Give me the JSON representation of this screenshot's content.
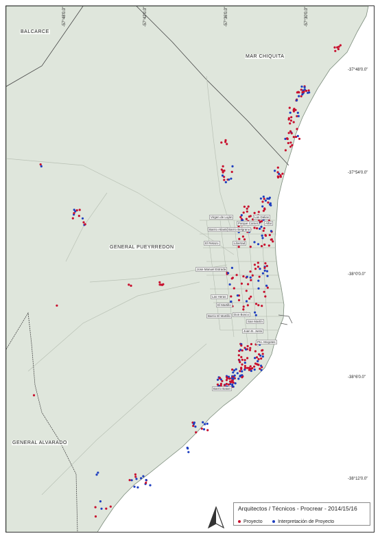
{
  "map": {
    "regions": [
      {
        "name": "BALCARCE"
      },
      {
        "name": "MAR CHIQUITA"
      },
      {
        "name": "GENERAL PUEYRREDON"
      },
      {
        "name": "GENERAL ALVARADO"
      }
    ],
    "latitudes": [
      "-37°48'0.0\"",
      "-37°54'0.0\"",
      "-38°0'0.0\"",
      "-38°6'0.0\"",
      "-38°12'0.0\""
    ],
    "longitudes": [
      "-57°48'0.0\"",
      "-57°42'0.0\"",
      "-57°36'0.0\"",
      "-57°30'0.0\""
    ],
    "barrios": [
      "Virgen de Luján",
      "Parque Camet",
      "Alfar",
      "Las Dalias",
      "Barrio Atlantico",
      "Barrio Belgrano",
      "El Retazo",
      "Jose Manuel Estrada",
      "Libertad",
      "Las Heras",
      "El Martillo",
      "Barrio El Martillo",
      "Don Bosco",
      "San Martín",
      "Juan B. Justo",
      "Pto. Mogotes",
      "Barrio Batan"
    ],
    "colors": {
      "land": "#dfe6dc",
      "sea": "#ffffff",
      "proyecto": "#c8102e",
      "interpretacion": "#1f3fbf"
    }
  },
  "legend": {
    "title": "Arquitectos / Técnicos - Procrear - 2014/15/16",
    "items": [
      {
        "label": "Proyecto",
        "color": "#c8102e"
      },
      {
        "label": "Interpretación de Proyecto",
        "color": "#1f3fbf"
      }
    ]
  }
}
